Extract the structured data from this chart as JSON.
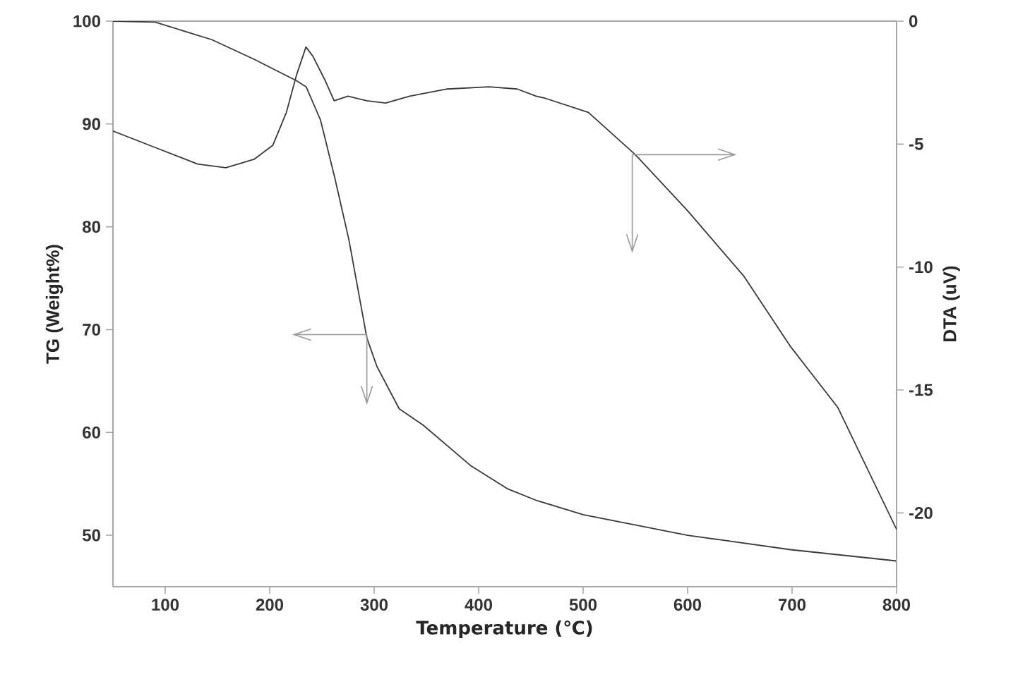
{
  "chart_data": {
    "type": "line",
    "xlabel": "Temperature (℃)",
    "ylabel": "TG (Weight%)",
    "y2label": "DTA (uV)",
    "xlim": [
      50,
      800
    ],
    "xticks": [
      100,
      200,
      300,
      400,
      500,
      600,
      700,
      800
    ],
    "ylim": [
      45,
      100
    ],
    "yticks": [
      50,
      60,
      70,
      80,
      90,
      100
    ],
    "y2lim": [
      -23,
      0
    ],
    "y2ticks": [
      -20,
      -15,
      -10,
      -5,
      0
    ],
    "grid": false,
    "marker": "none",
    "line_style": "solid",
    "series": [
      {
        "color": "#3a3a3a",
        "x": [
          50,
          90.5,
          144.6,
          185,
          225.7,
          235,
          248.6,
          262,
          275.7,
          293,
          302.7,
          324,
          347,
          392,
          428,
          455,
          500,
          600,
          698.6,
          800
        ],
        "values": [
          100,
          99.9,
          98.2,
          96.3,
          94.2,
          93.6,
          90.4,
          84.9,
          78.8,
          69.2,
          66.4,
          62.3,
          60.7,
          56.8,
          54.5,
          53.4,
          52,
          50,
          48.6,
          47.5
        ]
      },
      {
        "color": "#3a3a3a",
        "axis": "y2",
        "x": [
          50,
          90.5,
          131,
          158,
          185,
          203,
          216,
          225.7,
          234.7,
          241.4,
          252.7,
          261.7,
          275,
          293,
          311,
          334,
          370,
          410,
          437,
          455,
          464,
          505,
          550,
          600,
          654,
          698.6,
          743.6,
          800
        ],
        "values": [
          -4.47,
          -5.14,
          -5.81,
          -5.96,
          -5.62,
          -5.05,
          -3.71,
          -2.19,
          -1.05,
          -1.43,
          -2.38,
          -3.24,
          -3.05,
          -3.24,
          -3.33,
          -3.05,
          -2.76,
          -2.67,
          -2.76,
          -3.05,
          -3.14,
          -3.71,
          -5.43,
          -7.71,
          -10.38,
          -13.24,
          -15.7,
          -20.67
        ]
      }
    ]
  }
}
